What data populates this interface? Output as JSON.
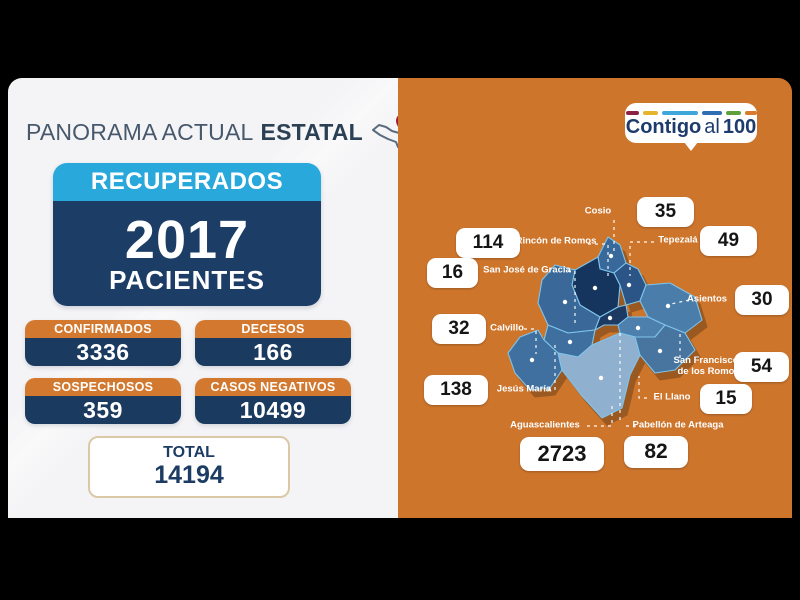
{
  "left_panel": {
    "background": "#F4F4F6",
    "title": {
      "regular": "PANORAMA ACTUAL",
      "bold": "ESTATAL"
    },
    "title_icon": "mexico-map-pin",
    "recovered_card": {
      "header": "RECUPERADOS",
      "value": "2017",
      "unit": "PACIENTES",
      "header_color": "#29A8DC",
      "body_color": "#1C3D66"
    },
    "stat_header_color": "#D2782F",
    "stat_body_color": "#1B3A5F",
    "stat_cards": [
      {
        "label": "CONFIRMADOS",
        "value": "3336"
      },
      {
        "label": "DECESOS",
        "value": "166"
      },
      {
        "label": "SOSPECHOSOS",
        "value": "359"
      },
      {
        "label": "CASOS NEGATIVOS",
        "value": "10499"
      }
    ],
    "total_card": {
      "label": "TOTAL",
      "value": "14194",
      "border_color": "#D9C9A6",
      "text_color": "#1C3C63"
    }
  },
  "right_panel": {
    "background": "#CE752C",
    "logo": {
      "word_bold": "Contigo",
      "word_regular": "al",
      "word_number": "100",
      "text_color": "#1D3B6D",
      "dash_colors": [
        "#8E2044",
        "#E5B52E",
        "#3FA7DC",
        "#2F6DB4",
        "#5EA03C",
        "#D97B2E"
      ],
      "dash_widths": [
        13,
        15,
        36,
        20,
        15,
        12
      ]
    },
    "map": {
      "stroke": "#7FC4EA",
      "fills": {
        "cosio": "#39689B",
        "rincon-de-romos": "#16355E",
        "tepezala": "#2B5587",
        "asientos": "#4B7DAB",
        "san-jose-de-gracia": "#3A6898",
        "pabellon-de-arteaga": "#1C3A62",
        "san-francisco-de-los-romo": "#4E80AE",
        "jesus-maria": "#3F6F9F",
        "calvillo": "#40709F",
        "aguascalientes": "#8FB0CE",
        "el-llano": "#47759F"
      }
    },
    "municipalities": [
      {
        "slug": "cosio",
        "name": "Cosio",
        "value": "35"
      },
      {
        "slug": "rincon-de-romos",
        "name": "Rincón de Romos",
        "value": "114"
      },
      {
        "slug": "tepezala",
        "name": "Tepezalá",
        "value": "49"
      },
      {
        "slug": "san-jose-de-gracia",
        "name": "San José de Gracia",
        "value": "16"
      },
      {
        "slug": "asientos",
        "name": "Asientos",
        "value": "30"
      },
      {
        "slug": "calvillo",
        "name": "Calvillo",
        "value": "32"
      },
      {
        "slug": "san-francisco-de-los-romo",
        "name": "San Francisco de los Romo",
        "value": "54"
      },
      {
        "slug": "jesus-maria",
        "name": "Jesús María",
        "value": "138"
      },
      {
        "slug": "el-llano",
        "name": "El Llano",
        "value": "15"
      },
      {
        "slug": "aguascalientes",
        "name": "Aguascalientes",
        "value": "2723"
      },
      {
        "slug": "pabellon-de-arteaga",
        "name": "Pabellón de Arteaga",
        "value": "82"
      }
    ]
  },
  "chart_data": {
    "type": "table",
    "title": "PANORAMA ACTUAL ESTATAL",
    "summary": {
      "recuperados_pacientes": 2017,
      "confirmados": 3336,
      "decesos": 166,
      "sospechosos": 359,
      "casos_negativos": 10499,
      "total": 14194
    },
    "municipio_values": {
      "Cosio": 35,
      "Rincón de Romos": 114,
      "Tepezalá": 49,
      "San José de Gracia": 16,
      "Asientos": 30,
      "Calvillo": 32,
      "San Francisco de los Romo": 54,
      "Jesús María": 138,
      "El Llano": 15,
      "Aguascalientes": 2723,
      "Pabellón de Arteaga": 82
    }
  }
}
